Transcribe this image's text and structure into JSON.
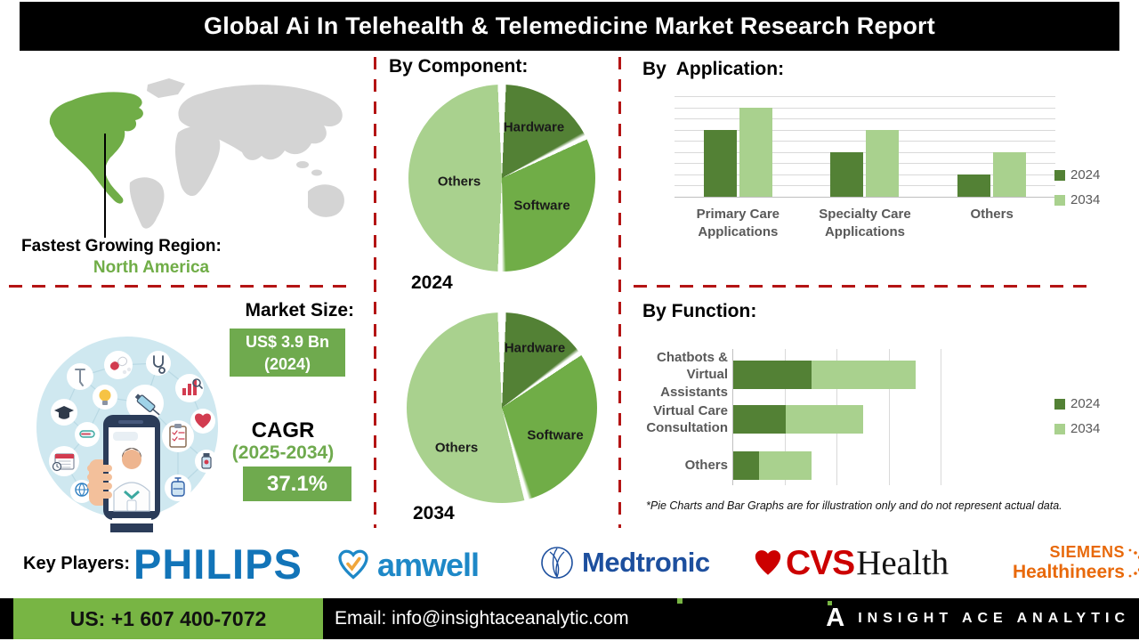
{
  "title": "Global Ai In Telehealth & Telemedicine Market Research Report",
  "map": {
    "region_label": "Fastest Growing Region:",
    "region_value": "North America",
    "highlight_color": "#70ad47",
    "base_color": "#d4d4d4"
  },
  "market": {
    "heading": "Market Size:",
    "size_line1": "US$ 3.9 Bn",
    "size_line2": "(2024)",
    "cagr_label": "CAGR",
    "cagr_period": "(2025-2034)",
    "cagr_value": "37.1%"
  },
  "footnote": "*Pie Charts and Bar Graphs are for illustration only and do not represent actual data.",
  "key_players": {
    "label": "Key Players:",
    "companies": [
      "PHILIPS",
      "amwell",
      "Medtronic",
      "CVS Health",
      "SIEMENS Healthineers"
    ],
    "philips": "PHILIPS",
    "amwell": "amwell",
    "medtronic": "Medtronic",
    "cvs_cvs": "CVS",
    "cvs_health": "Health",
    "siemens_line1": "SIEMENS",
    "siemens_line2": "Healthineers"
  },
  "footer": {
    "phone": "US: +1 607 400-7072",
    "email": "Email: info@insightaceanalytic.com",
    "brand": "INSIGHT ACE ANALYTIC"
  },
  "colors": {
    "green_dark": "#538135",
    "green_mid": "#70ad47",
    "green_light": "#a9d18e",
    "divider_red": "#b41414",
    "footer_green": "#78b544",
    "philips_blue": "#1274b8",
    "amwell_blue": "#1e88c7",
    "medtronic_blue": "#1d4f9e",
    "cvs_red": "#cc0000",
    "siemens_orange": "#e8690b"
  },
  "icons": [
    "world-map",
    "syringe-icon",
    "pill-icon",
    "stethoscope-icon",
    "analytics-icon",
    "heart-icon",
    "bulb-icon",
    "graduation-cap-icon",
    "thermometer-icon",
    "calendar-icon",
    "globe-icon",
    "clipboard-icon",
    "medicine-bottle-icon",
    "iv-bag-icon",
    "crutch-icon",
    "phone-doctor-illustration",
    "amwell-heart-icon",
    "medtronic-globe-icon",
    "cvs-heart-icon",
    "siemens-dots-icon",
    "insightace-logo-icon"
  ],
  "chart_data": [
    {
      "id": "component-pie-2024",
      "type": "pie",
      "title": "By Component:",
      "year": "2024",
      "start_angle_deg": 0,
      "direction": "clockwise",
      "slices": [
        {
          "label": "Hardware",
          "value": 17.5,
          "color": "#538135"
        },
        {
          "label": "Software",
          "value": 32.5,
          "color": "#70ad47"
        },
        {
          "label": "Others",
          "value": 50.0,
          "color": "#a9d18e"
        }
      ],
      "note": "illustrative only"
    },
    {
      "id": "component-pie-2034",
      "type": "pie",
      "year": "2034",
      "start_angle_deg": 0,
      "direction": "clockwise",
      "slices": [
        {
          "label": "Hardware",
          "value": 15.0,
          "color": "#538135"
        },
        {
          "label": "Software",
          "value": 30.5,
          "color": "#70ad47"
        },
        {
          "label": "Others",
          "value": 54.5,
          "color": "#a9d18e"
        }
      ],
      "note": "illustrative only"
    },
    {
      "id": "application-bars",
      "type": "bar",
      "title": "By  Application:",
      "categories": [
        "Primary Care Applications",
        "Specialty Care Applications",
        "Others"
      ],
      "series": [
        {
          "name": "2024",
          "values": [
            6,
            4,
            2
          ],
          "color": "#538135"
        },
        {
          "name": "2034",
          "values": [
            8,
            6,
            4
          ],
          "color": "#a9d18e"
        }
      ],
      "ylim": [
        0,
        9
      ],
      "gridlines": 9,
      "legend_position": "right",
      "value_axis_labels": "none (illustrative units)"
    },
    {
      "id": "function-bars",
      "type": "bar-horizontal-stacked",
      "title": "By Function:",
      "categories": [
        "Chatbots & Virtual Assistants",
        "Virtual Care Consultation",
        "Others"
      ],
      "series": [
        {
          "name": "2024",
          "values": [
            1.5,
            1.0,
            0.5
          ],
          "color": "#538135"
        },
        {
          "name": "2034",
          "values": [
            2.0,
            1.5,
            1.0
          ],
          "color": "#a9d18e"
        }
      ],
      "xlim": [
        0,
        4
      ],
      "gridlines": 5,
      "legend_position": "right",
      "value_axis_labels": "none (illustrative units)"
    }
  ]
}
